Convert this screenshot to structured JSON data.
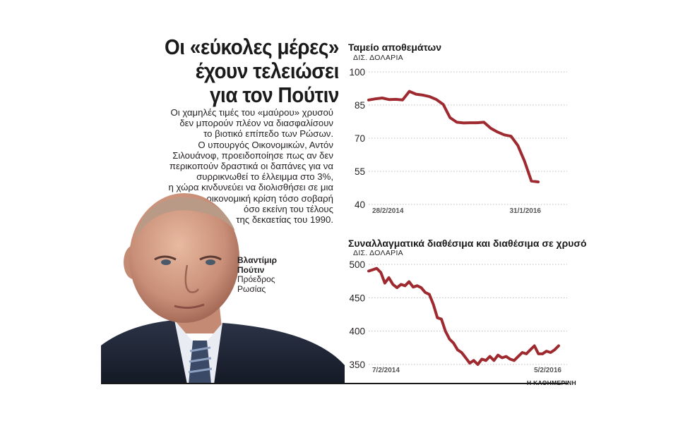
{
  "article": {
    "headline": [
      "Οι «εύκολες μέρες»",
      "έχουν τελειώσει",
      "για τον Πούτιν"
    ],
    "body_lines": [
      "Οι χαμηλές τιμές του «μαύρου» χρυσού",
      "δεν μπορούν πλέον να διασφαλίσουν",
      "το βιοτικό επίπεδο των Ρώσων.",
      "Ο υπουργός Οικονομικών, Αντόν",
      "Σιλουάνοφ, προειδοποίησε  πως αν δεν",
      "περικοπούν δραστικά οι δαπάνες για να",
      "συρρικνωθεί το έλλειμμα  στο 3%,",
      "η χώρα κινδυνεύει να διολισθήσει σε μια",
      "οικονομική κρίση τόσο σοβαρή",
      "όσο εκείνη του τέλους",
      "της δεκαετίας του 1990."
    ],
    "caption_name": [
      "Βλαντίμιρ",
      "Πούτιν"
    ],
    "caption_role": [
      "Πρόεδρος",
      "Ρωσίας"
    ],
    "credit": "Η ΚΑΘΗΜΕΡΙΝΗ"
  },
  "colors": {
    "line": "#9e2a2f",
    "grid": "#bdbdbd",
    "text": "#231f20"
  },
  "chart_data": [
    {
      "type": "line",
      "title": "Ταμείο αποθεμάτων",
      "unit": "ΔΙΣ. ΔΟΛΑΡΙΑ",
      "ylim": [
        40,
        100
      ],
      "yticks": [
        100,
        85,
        70,
        55,
        40
      ],
      "x_start_label": "28/2/2014",
      "x_end_label": "31/1/2016",
      "grid": "dotted horizontal",
      "series": [
        {
          "values": [
            87.3,
            87.8,
            88.2,
            87.5,
            87.6,
            87.3,
            91.2,
            89.9,
            89.5,
            88.8,
            87.5,
            85.3,
            79.3,
            77.2,
            76.9,
            77.0,
            77.0,
            77.2,
            74.5,
            72.8,
            71.5,
            70.9,
            66.7,
            59.5,
            50.6,
            50.2
          ]
        }
      ]
    },
    {
      "type": "line",
      "title": "Συναλλαγματικά διαθέσιμα και διαθέσιμα σε χρυσό",
      "unit": "ΔΙΣ. ΔΟΛΑΡΙΑ",
      "ylim": [
        350,
        500
      ],
      "yticks": [
        500,
        450,
        400,
        350
      ],
      "x_start_label": "7/2/2014",
      "x_end_label": "5/2/2016",
      "grid": "dotted horizontal",
      "series": [
        {
          "values": [
            490,
            492,
            494,
            488,
            472,
            480,
            470,
            465,
            470,
            468,
            474,
            466,
            468,
            465,
            458,
            455,
            440,
            420,
            418,
            400,
            388,
            382,
            372,
            368,
            360,
            352,
            356,
            350,
            358,
            356,
            362,
            356,
            364,
            360,
            362,
            358,
            356,
            362,
            368,
            366,
            372,
            378,
            366,
            366,
            370,
            368,
            372,
            378
          ]
        }
      ]
    }
  ]
}
